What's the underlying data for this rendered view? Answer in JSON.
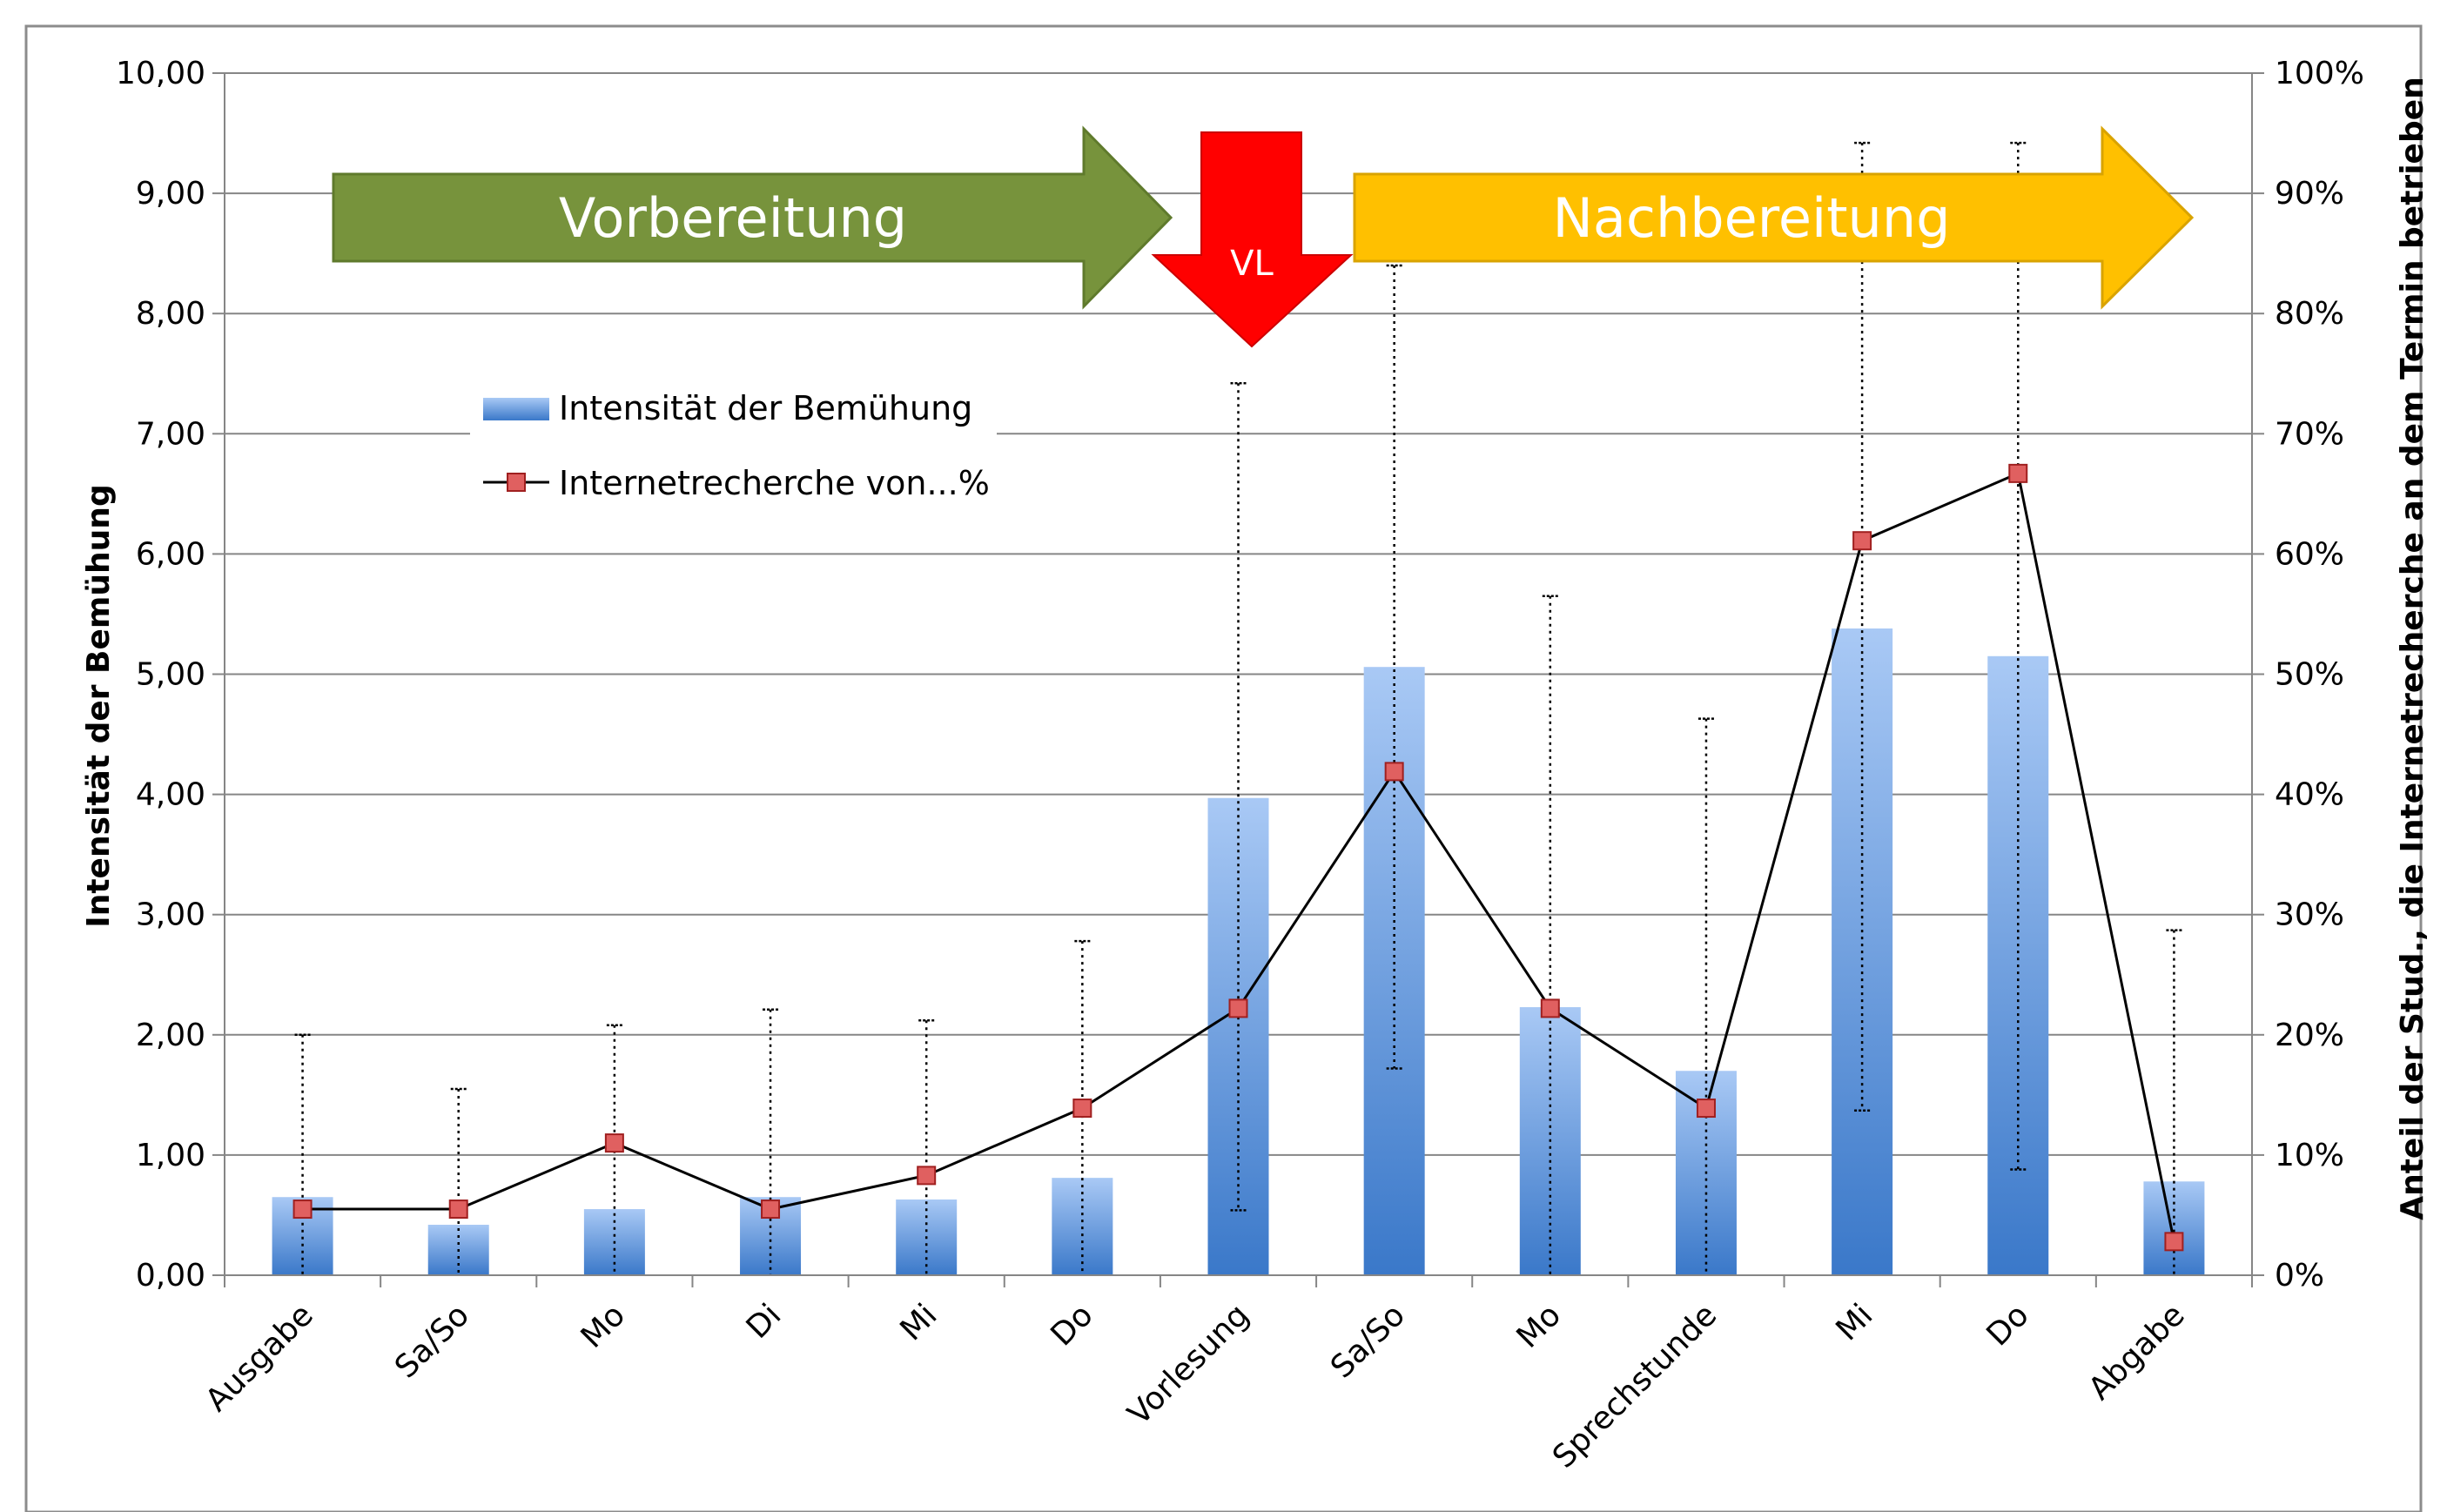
{
  "chart_data": {
    "type": "bar",
    "categories": [
      "Ausgabe",
      "Sa/So",
      "Mo",
      "Di",
      "Mi",
      "Do",
      "Vorlesung",
      "Sa/So",
      "Mo",
      "Sprechstunde",
      "Mi",
      "Do",
      "Abgabe"
    ],
    "series": [
      {
        "name": "Intensität der Bemühung",
        "type": "bar",
        "axis": "left",
        "values": [
          0.65,
          0.42,
          0.55,
          0.65,
          0.63,
          0.81,
          3.97,
          5.06,
          2.23,
          1.7,
          5.38,
          5.15,
          0.78
        ],
        "error_high": [
          2.0,
          1.55,
          2.08,
          2.21,
          2.12,
          2.78,
          7.42,
          8.4,
          5.65,
          4.63,
          9.42,
          9.42,
          2.87
        ],
        "error_low": [
          0.0,
          0.0,
          0.0,
          0.0,
          0.0,
          0.0,
          0.54,
          1.72,
          0.0,
          0.0,
          1.37,
          0.88,
          0.0
        ]
      },
      {
        "name": "Internetrecherche von...%",
        "type": "line",
        "axis": "right",
        "values": [
          5.5,
          5.5,
          11.0,
          5.5,
          8.3,
          13.9,
          22.2,
          41.9,
          22.2,
          13.9,
          61.1,
          66.7,
          2.8
        ]
      }
    ],
    "ylabel": "Intensität der Bemühung",
    "y2label": "Anteil der Stud., die Internetrecherche an dem Termin betrieben",
    "ylim": [
      0,
      10
    ],
    "y2lim": [
      0,
      100
    ],
    "yticks": [
      "0,00",
      "1,00",
      "2,00",
      "3,00",
      "4,00",
      "5,00",
      "6,00",
      "7,00",
      "8,00",
      "9,00",
      "10,00"
    ],
    "y2ticks": [
      "0%",
      "10%",
      "20%",
      "30%",
      "40%",
      "50%",
      "60%",
      "70%",
      "80%",
      "90%",
      "100%"
    ],
    "grid": true,
    "legend": "upper-left",
    "annotations": {
      "prep": "Vorbereitung",
      "lecture": "VL",
      "post": "Nachbereitung"
    },
    "colors": {
      "bar_top": "#a9c9f5",
      "bar_bottom": "#3a78c9",
      "line": "#000000",
      "marker_fill": "#e06060",
      "marker_stroke": "#a02020",
      "prep_arrow": "#77933c",
      "lecture_arrow": "#ff0000",
      "post_arrow": "#ffc000",
      "grid": "#868686"
    }
  }
}
